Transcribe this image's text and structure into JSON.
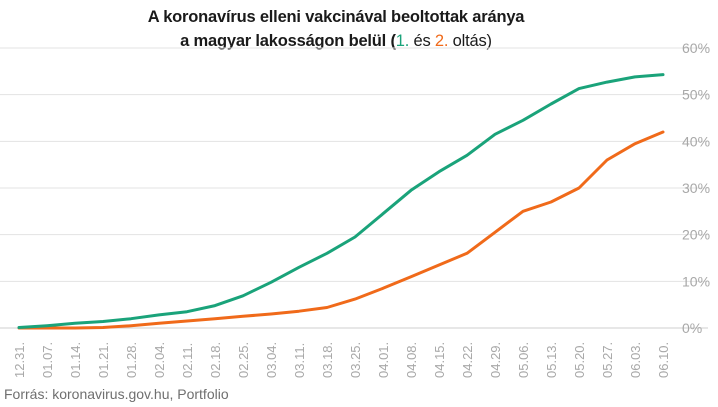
{
  "title": {
    "line1": "A koronavírus elleni vakcinával beoltottak aránya",
    "line2_start": "a magyar lakosságon belül (",
    "dose1_label": "1.",
    "middle": " és ",
    "dose2_label": "2.",
    "line2_end": " oltás)"
  },
  "source": "Forrás: koronavirus.gov.hu, Portfolio",
  "colors": {
    "dose1": "#1aa37a",
    "dose2": "#f06a1a",
    "grid": "#e3e3e3",
    "tick": "#a8a8a8",
    "title": "#1a1a1a"
  },
  "chart_data": {
    "type": "line",
    "title": "A koronavírus elleni vakcinával beoltottak aránya a magyar lakosságon belül (1. és 2. oltás)",
    "xlabel": "",
    "ylabel": "",
    "ylim": [
      0,
      60
    ],
    "y_ticks": [
      0,
      10,
      20,
      30,
      40,
      50,
      60
    ],
    "y_tick_labels": [
      "0%",
      "10%",
      "20%",
      "30%",
      "40%",
      "50%",
      "60%"
    ],
    "grid": "horizontal",
    "legend": "none (colored words in title)",
    "categories": [
      "12.31.",
      "01.07.",
      "01.14.",
      "01.21.",
      "01.28.",
      "02.04.",
      "02.11.",
      "02.18.",
      "02.25.",
      "03.04.",
      "03.11.",
      "03.18.",
      "03.25.",
      "04.01.",
      "04.08.",
      "04.15.",
      "04.22.",
      "04.29.",
      "05.06.",
      "05.13.",
      "05.20.",
      "05.27.",
      "06.03.",
      "06.10."
    ],
    "series": [
      {
        "name": "1.",
        "color": "#1aa37a",
        "values": [
          0.1,
          0.5,
          1.0,
          1.4,
          2.0,
          2.8,
          3.5,
          4.8,
          6.9,
          9.8,
          13.0,
          16.0,
          19.5,
          24.5,
          29.5,
          33.5,
          37.0,
          41.5,
          44.5,
          48.0,
          51.3,
          52.7,
          53.8,
          54.3
        ]
      },
      {
        "name": "2.",
        "color": "#f06a1a",
        "values": [
          0.0,
          0.0,
          0.0,
          0.1,
          0.5,
          1.0,
          1.5,
          2.0,
          2.5,
          3.0,
          3.6,
          4.4,
          6.2,
          8.5,
          11.0,
          13.5,
          16.0,
          20.5,
          25.0,
          27.0,
          30.0,
          36.0,
          39.5,
          42.0
        ]
      }
    ]
  }
}
